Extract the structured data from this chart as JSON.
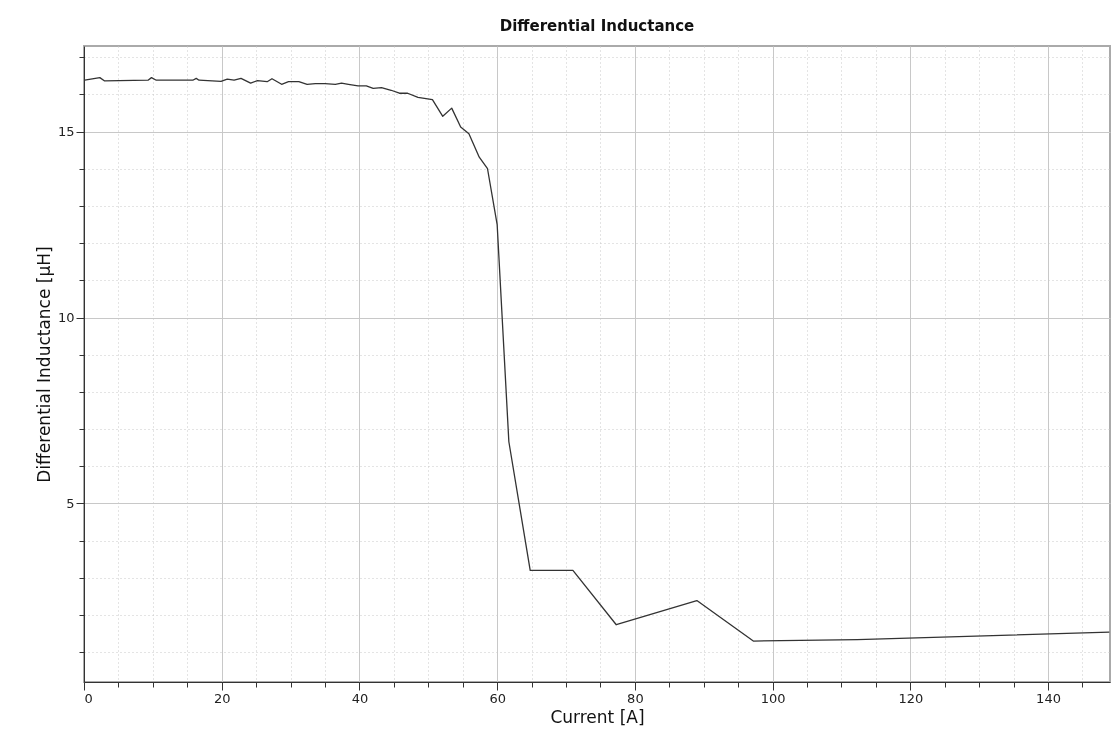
{
  "chart_data": {
    "type": "line",
    "title": "Differential Inductance",
    "xlabel": "Current [A]",
    "ylabel": "Differential Inductance [µH]",
    "xlim": [
      0,
      149
    ],
    "ylim": [
      0.2,
      17.3
    ],
    "xticks": [
      0,
      {
        "value": 5,
        "label": null
      },
      {
        "value": 10,
        "label": null
      },
      {
        "value": 15,
        "label": null
      },
      20,
      {
        "value": 25,
        "label": null
      },
      {
        "value": 30,
        "label": null
      },
      {
        "value": 35,
        "label": null
      },
      40,
      {
        "value": 45,
        "label": null
      },
      {
        "value": 50,
        "label": null
      },
      {
        "value": 55,
        "label": null
      },
      60,
      {
        "value": 65,
        "label": null
      },
      {
        "value": 70,
        "label": null
      },
      {
        "value": 75,
        "label": null
      },
      80,
      {
        "value": 85,
        "label": null
      },
      {
        "value": 90,
        "label": null
      },
      {
        "value": 95,
        "label": null
      },
      100,
      {
        "value": 105,
        "label": null
      },
      {
        "value": 110,
        "label": null
      },
      {
        "value": 115,
        "label": null
      },
      120,
      {
        "value": 125,
        "label": null
      },
      {
        "value": 130,
        "label": null
      },
      {
        "value": 135,
        "label": null
      },
      140,
      {
        "value": 145,
        "label": null
      }
    ],
    "yticks": [
      {
        "value": 1,
        "label": null
      },
      {
        "value": 2,
        "label": null
      },
      {
        "value": 3,
        "label": null
      },
      {
        "value": 4,
        "label": null
      },
      5,
      {
        "value": 6,
        "label": null
      },
      {
        "value": 7,
        "label": null
      },
      {
        "value": 8,
        "label": null
      },
      {
        "value": 9,
        "label": null
      },
      10,
      {
        "value": 11,
        "label": null
      },
      {
        "value": 12,
        "label": null
      },
      {
        "value": 13,
        "label": null
      },
      {
        "value": 14,
        "label": null
      },
      15,
      {
        "value": 16,
        "label": null
      },
      {
        "value": 17,
        "label": null
      }
    ],
    "grid": true,
    "marker": "none",
    "line_style": "solid",
    "series": [
      {
        "color": "#333333",
        "x": [
          0.1,
          2.3,
          3.0,
          9.3,
          9.8,
          10.5,
          15.8,
          16.3,
          16.7,
          19.9,
          20.8,
          21.8,
          22.8,
          24.2,
          25.2,
          26.6,
          27.3,
          28.7,
          29.7,
          31.2,
          32.4,
          33.6,
          35.0,
          36.5,
          37.4,
          38.4,
          39.8,
          41.0,
          42.0,
          43.2,
          44.6,
          45.8,
          47.0,
          48.5,
          50.6,
          52.1,
          53.4,
          54.7,
          55.9,
          57.4,
          58.6,
          60.0,
          61.7,
          64.8,
          71.0,
          77.3,
          89.0,
          97.2,
          112.3,
          148.9
        ],
        "values": [
          16.38,
          16.45,
          16.36,
          16.38,
          16.45,
          16.38,
          16.38,
          16.43,
          16.38,
          16.35,
          16.41,
          16.38,
          16.43,
          16.3,
          16.37,
          16.34,
          16.42,
          16.27,
          16.34,
          16.34,
          16.27,
          16.29,
          16.29,
          16.27,
          16.3,
          16.27,
          16.23,
          16.23,
          16.16,
          16.18,
          16.11,
          16.03,
          16.03,
          15.92,
          15.86,
          15.41,
          15.63,
          15.12,
          14.94,
          14.31,
          14.0,
          12.5,
          6.66,
          3.2,
          3.2,
          1.74,
          2.39,
          1.3,
          1.34,
          1.54
        ]
      }
    ]
  }
}
